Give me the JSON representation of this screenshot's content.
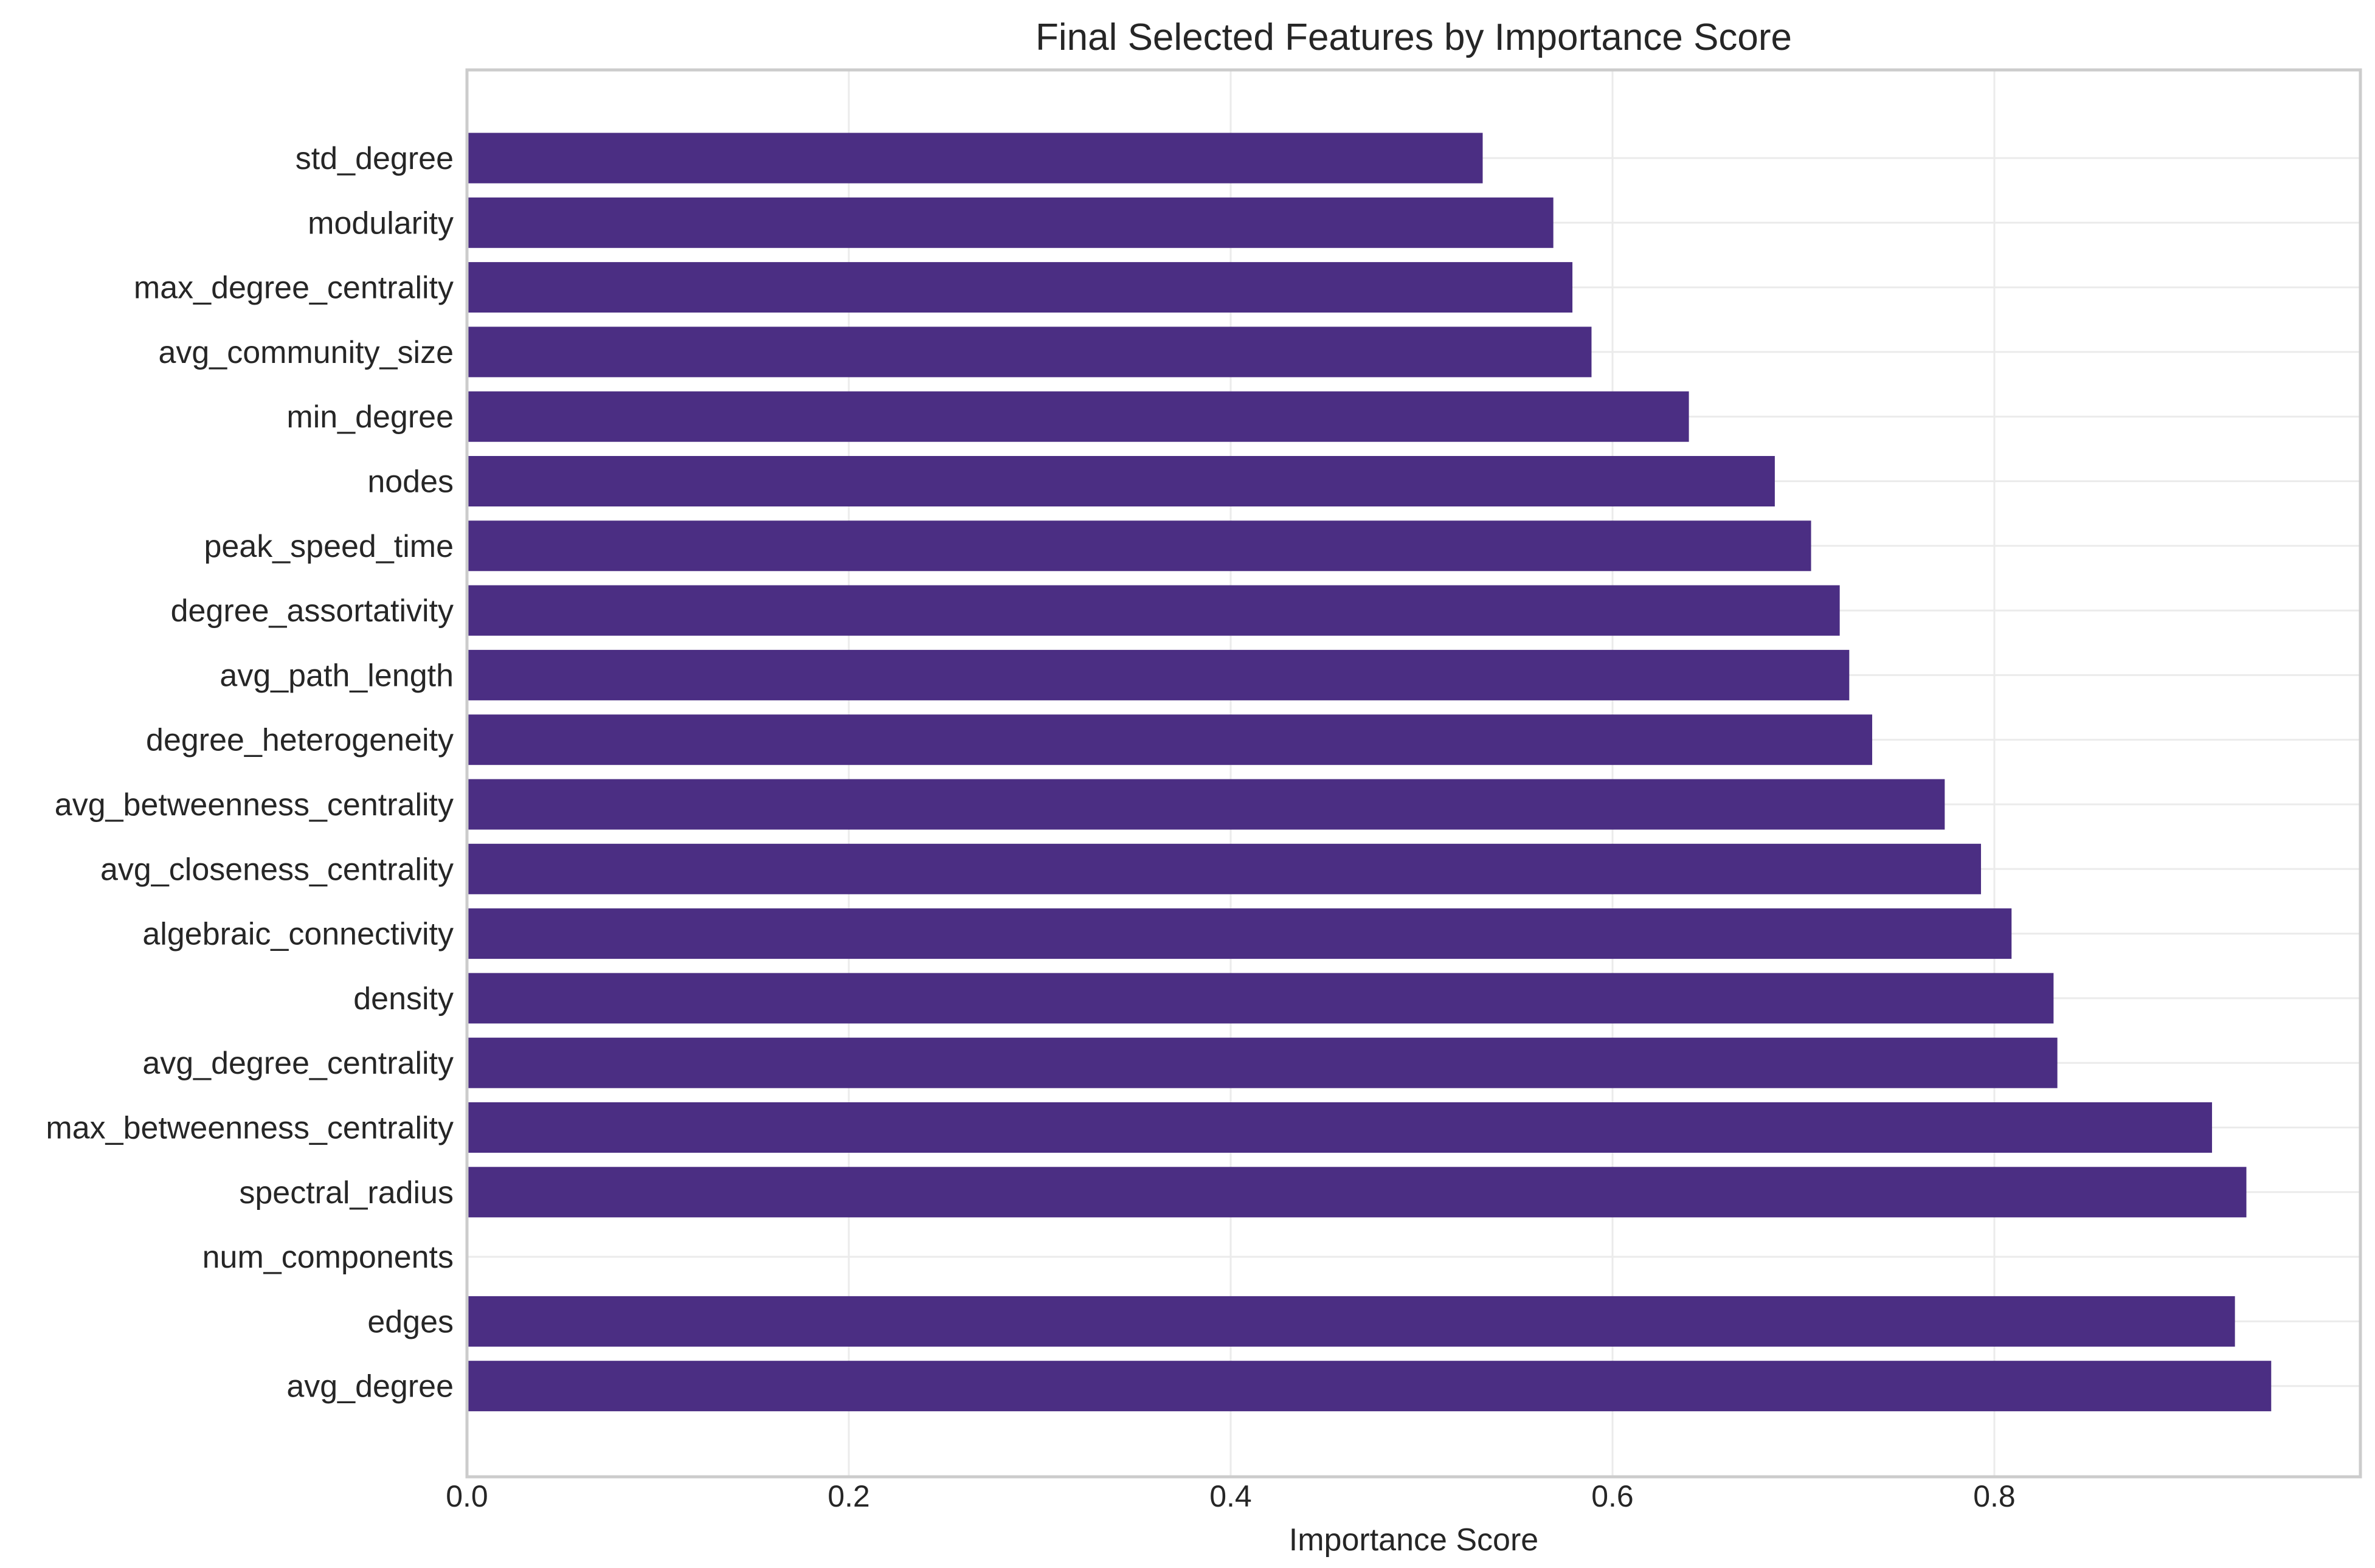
{
  "chart_data": {
    "type": "bar",
    "orientation": "horizontal",
    "title": "Final Selected Features by Importance Score",
    "xlabel": "Importance Score",
    "ylabel": "",
    "xlim": [
      0,
      0.99
    ],
    "xticks": [
      "0.0",
      "0.2",
      "0.4",
      "0.6",
      "0.8"
    ],
    "grid": true,
    "bar_color": "#4b2e83",
    "categories": [
      "std_degree",
      "modularity",
      "max_degree_centrality",
      "avg_community_size",
      "min_degree",
      "nodes",
      "peak_speed_time",
      "degree_assortativity",
      "avg_path_length",
      "degree_heterogeneity",
      "avg_betweenness_centrality",
      "avg_closeness_centrality",
      "algebraic_connectivity",
      "density",
      "avg_degree_centrality",
      "max_betweenness_centrality",
      "spectral_radius",
      "num_components",
      "edges",
      "avg_degree"
    ],
    "values": [
      0.532,
      0.569,
      0.579,
      0.589,
      0.64,
      0.685,
      0.704,
      0.719,
      0.724,
      0.736,
      0.774,
      0.793,
      0.809,
      0.831,
      0.833,
      0.914,
      0.932,
      0,
      0.926,
      0.945
    ]
  }
}
